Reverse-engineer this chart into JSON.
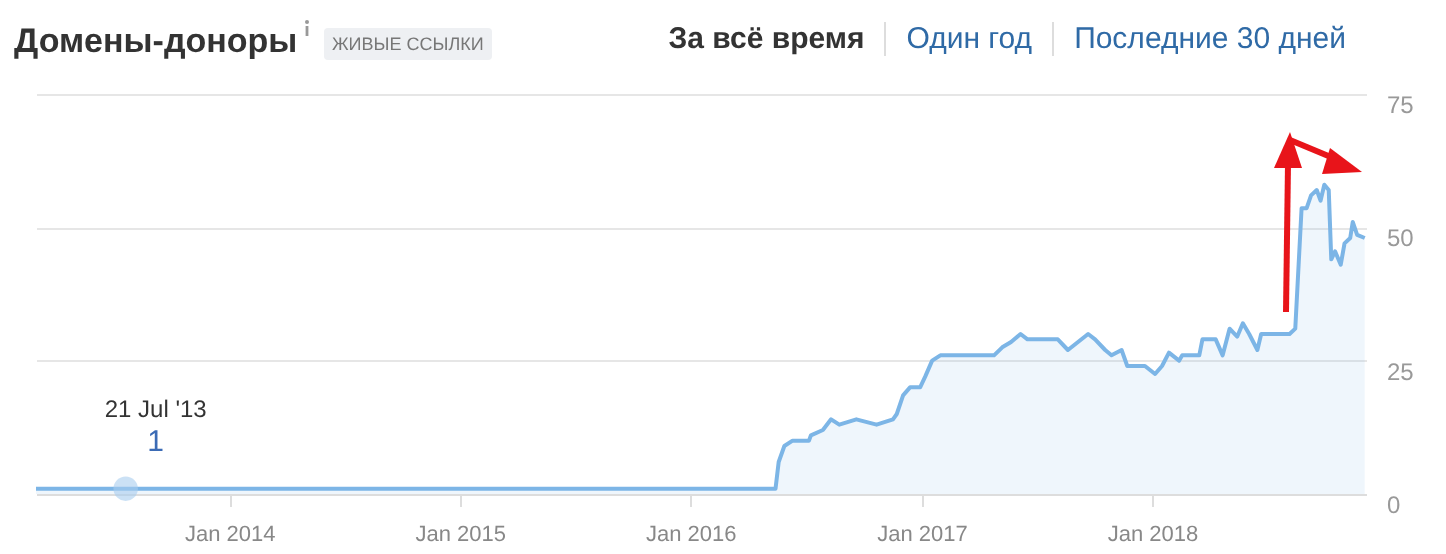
{
  "chart_data": {
    "type": "area",
    "title": "Домены-доноры",
    "subtitle": "ЖИВЫЕ ССЫЛКИ",
    "annotations": [
      "За всё время",
      "Один год",
      "Последние 30 дней",
      {
        "text": "1",
        "x": "2013-07-21",
        "y": 1
      },
      "21 Jul '13"
    ],
    "x": [
      "2013-03-01",
      "2016-05-15",
      "2016-05-20",
      "2016-05-29",
      "2016-06-11",
      "2016-07-07",
      "2016-07-10",
      "2016-07-29",
      "2016-08-11",
      "2016-08-24",
      "2016-09-20",
      "2016-10-22",
      "2016-11-17",
      "2016-11-23",
      "2016-12-03",
      "2016-12-14",
      "2016-12-30",
      "2017-01-07",
      "2017-01-18",
      "2017-01-31",
      "2017-02-10",
      "2017-04-26",
      "2017-05-09",
      "2017-05-23",
      "2017-06-07",
      "2017-06-18",
      "2017-07-09",
      "2017-08-05",
      "2017-08-21",
      "2017-09-22",
      "2017-10-03",
      "2017-10-19",
      "2017-10-29",
      "2017-11-14",
      "2017-11-23",
      "2017-12-21",
      "2018-01-06",
      "2018-01-17",
      "2018-01-28",
      "2018-02-13",
      "2018-02-18",
      "2018-03-17",
      "2018-03-22",
      "2018-04-12",
      "2018-04-23",
      "2018-05-04",
      "2018-05-16",
      "2018-05-25",
      "2018-06-04",
      "2018-06-17",
      "2018-06-23",
      "2018-07-17",
      "2018-08-07",
      "2018-08-16",
      "2018-08-26",
      "2018-09-03",
      "2018-09-10",
      "2018-09-19",
      "2018-09-25",
      "2018-10-01",
      "2018-10-08",
      "2018-10-12",
      "2018-10-18",
      "2018-10-27",
      "2018-11-02",
      "2018-11-11",
      "2018-11-15",
      "2018-11-22",
      "2018-12-04"
    ],
    "series": [
      {
        "color": "#7cb5e6",
        "values": [
          1,
          1,
          6,
          9,
          10,
          10,
          11,
          12,
          14,
          13,
          14,
          13,
          14,
          15,
          18.5,
          20,
          20,
          22,
          25,
          26,
          26,
          26,
          27.5,
          28.5,
          30,
          29,
          29,
          29,
          27,
          30,
          29,
          27,
          26,
          27,
          24,
          24,
          22.5,
          24,
          26.5,
          25,
          26,
          26,
          29,
          29,
          26,
          31,
          29.5,
          32,
          30,
          27,
          30,
          30,
          30,
          31,
          53.6,
          53.6,
          56,
          57,
          55,
          58,
          57,
          44,
          45.5,
          43,
          47,
          48,
          51,
          48.6,
          48
        ]
      }
    ],
    "xlim": [
      "2013-03-01",
      "2018-12-06"
    ],
    "xticks": [
      {
        "value": "2014-01-01",
        "label": "Jan 2014"
      },
      {
        "value": "2015-01-01",
        "label": "Jan 2015"
      },
      {
        "value": "2016-01-01",
        "label": "Jan 2016"
      },
      {
        "value": "2017-01-01",
        "label": "Jan 2017"
      },
      {
        "value": "2018-01-01",
        "label": "Jan 2018"
      }
    ],
    "ylim": [
      0,
      75
    ],
    "yticks": [
      0,
      25,
      50,
      75
    ],
    "grid": "y",
    "marker": "none"
  }
}
